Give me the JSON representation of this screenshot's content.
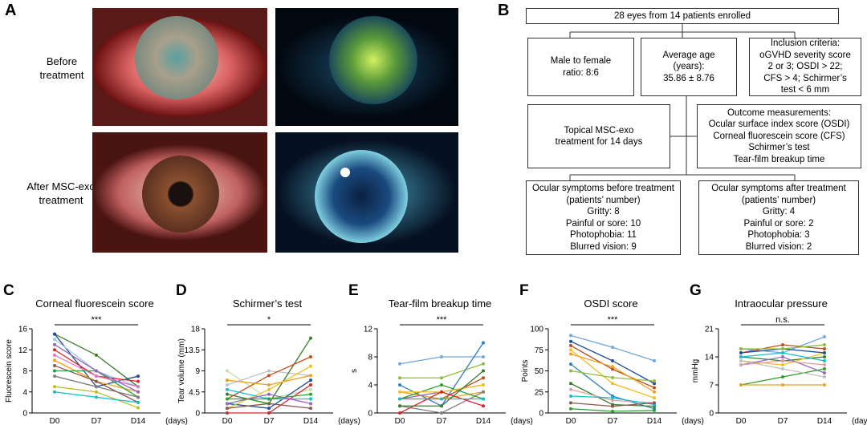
{
  "panel_labels": [
    "A",
    "B"
  ],
  "photos": {
    "before": [
      "Before",
      "treatment"
    ],
    "after": [
      "After MSC-exo",
      "treatment"
    ]
  },
  "flowchart": {
    "enrolled": [
      "28 eyes from 14 patients enrolled"
    ],
    "ratio": [
      "Male to female",
      "ratio: 8:6"
    ],
    "age": [
      "Average age",
      "(years):",
      "35.86 ± 8.76"
    ],
    "inclusion": [
      "Inclusion criteria:",
      "oGVHD  severity score",
      "2 or 3; OSDI > 22;",
      "CFS > 4; Schirmer’s",
      "test < 6 mm"
    ],
    "treatment": [
      "Topical MSC-exo",
      "treatment for 14 days"
    ],
    "outcomes": [
      "Outcome measurements:",
      "Ocular surface index score (OSDI)",
      "Corneal fluorescein score (CFS)",
      "Schirmer’s test",
      "Tear-film breakup time"
    ],
    "before": [
      "Ocular symptoms before treatment",
      "(patients’ number)",
      "Gritty: 8",
      "Painful or sore: 10",
      "Photophobia: 11",
      "Blurred vision: 9"
    ],
    "after": [
      "Ocular symptoms after treatment",
      "(patients’ number)",
      "Gritty: 4",
      "Painful or sore: 2",
      "Photophobia: 3",
      "Blurred vision: 2"
    ]
  },
  "chart_data": [
    {
      "type": "line",
      "panel": "C",
      "title": "Corneal  fluorescein score",
      "y_label": "Fluorescein score",
      "x_unit": "(days)",
      "significance": "***",
      "categories": [
        "D0",
        "D7",
        "D14"
      ],
      "ylim": [
        0,
        16
      ],
      "yticks": [
        0,
        4,
        8,
        12,
        16
      ],
      "series": [
        {
          "color": "#3a7d2c",
          "values": [
            15,
            11,
            5
          ]
        },
        {
          "color": "#1f4e9c",
          "values": [
            15,
            5,
            7
          ]
        },
        {
          "color": "#9ec9e8",
          "values": [
            14,
            8,
            5
          ]
        },
        {
          "color": "#d62728",
          "values": [
            12,
            7,
            6
          ]
        },
        {
          "color": "#f0a020",
          "values": [
            10,
            6,
            4
          ]
        },
        {
          "color": "#8c564b",
          "values": [
            9,
            6,
            2
          ]
        },
        {
          "color": "#2ca02c",
          "values": [
            8,
            8,
            3
          ]
        },
        {
          "color": "#7f7f7f",
          "values": [
            7,
            5,
            3
          ]
        },
        {
          "color": "#bcbd22",
          "values": [
            5,
            4,
            1
          ]
        },
        {
          "color": "#17becf",
          "values": [
            4,
            3,
            2
          ]
        },
        {
          "color": "#e377c2",
          "values": [
            11,
            7,
            5
          ]
        },
        {
          "color": "#9467bd",
          "values": [
            13,
            8,
            4
          ]
        }
      ]
    },
    {
      "type": "line",
      "panel": "D",
      "title": "Schirmer’s test",
      "y_label": "Tear volume (mm)",
      "x_unit": "(days)",
      "significance": "*",
      "categories": [
        "D0",
        "D7",
        "D14"
      ],
      "ylim": [
        0,
        18
      ],
      "yticks": [
        0,
        4.5,
        9,
        13.5,
        18
      ],
      "series": [
        {
          "color": "#c5e0a5",
          "values": [
            9,
            3,
            5
          ]
        },
        {
          "color": "#c0c0c0",
          "values": [
            6,
            9,
            8
          ]
        },
        {
          "color": "#3a7d2c",
          "values": [
            4,
            2,
            16
          ]
        },
        {
          "color": "#c0501a",
          "values": [
            3,
            8,
            12
          ]
        },
        {
          "color": "#1f4e9c",
          "values": [
            2,
            1,
            7
          ]
        },
        {
          "color": "#f0c020",
          "values": [
            1,
            5,
            10
          ]
        },
        {
          "color": "#17becf",
          "values": [
            5,
            3,
            3
          ]
        },
        {
          "color": "#d62728",
          "values": [
            0,
            0,
            6
          ]
        },
        {
          "color": "#9467bd",
          "values": [
            2,
            4,
            2
          ]
        },
        {
          "color": "#f0a020",
          "values": [
            7,
            6,
            8
          ]
        },
        {
          "color": "#2ca02c",
          "values": [
            3,
            3,
            4
          ]
        },
        {
          "color": "#8c564b",
          "values": [
            1,
            2,
            1
          ]
        }
      ]
    },
    {
      "type": "line",
      "panel": "E",
      "title": "Tear-film breakup time",
      "y_label": "s",
      "x_unit": "(days)",
      "significance": "***",
      "categories": [
        "D0",
        "D7",
        "D14"
      ],
      "ylim": [
        0,
        12
      ],
      "yticks": [
        0,
        4,
        8,
        12
      ],
      "series": [
        {
          "color": "#6fa8dc",
          "values": [
            7,
            8,
            8
          ]
        },
        {
          "color": "#8fbc3f",
          "values": [
            5,
            5,
            7
          ]
        },
        {
          "color": "#2f7fc1",
          "values": [
            4,
            1,
            10
          ]
        },
        {
          "color": "#f0a020",
          "values": [
            3,
            2,
            3
          ]
        },
        {
          "color": "#9467bd",
          "values": [
            2,
            3,
            4
          ]
        },
        {
          "color": "#c0501a",
          "values": [
            2,
            2,
            5
          ]
        },
        {
          "color": "#7f7f7f",
          "values": [
            1,
            0,
            3
          ]
        },
        {
          "color": "#2ca02c",
          "values": [
            2,
            4,
            2
          ]
        },
        {
          "color": "#f0c020",
          "values": [
            3,
            3,
            4
          ]
        },
        {
          "color": "#d62728",
          "values": [
            0,
            3,
            1
          ]
        },
        {
          "color": "#17becf",
          "values": [
            2,
            2,
            2
          ]
        },
        {
          "color": "#3a7d2c",
          "values": [
            1,
            1,
            6
          ]
        }
      ]
    },
    {
      "type": "line",
      "panel": "F",
      "title": "OSDI score",
      "y_label": "Points",
      "x_unit": "(days)",
      "significance": "***",
      "categories": [
        "D0",
        "D7",
        "D14"
      ],
      "ylim": [
        0,
        100
      ],
      "yticks": [
        0,
        25,
        50,
        75,
        100
      ],
      "series": [
        {
          "color": "#6fa8dc",
          "values": [
            92,
            78,
            62
          ]
        },
        {
          "color": "#1f4e9c",
          "values": [
            85,
            62,
            35
          ]
        },
        {
          "color": "#c0501a",
          "values": [
            80,
            52,
            30
          ]
        },
        {
          "color": "#f0c020",
          "values": [
            75,
            35,
            18
          ]
        },
        {
          "color": "#2f7fc1",
          "values": [
            58,
            20,
            5
          ]
        },
        {
          "color": "#8fbc3f",
          "values": [
            50,
            42,
            38
          ]
        },
        {
          "color": "#3a7d2c",
          "values": [
            35,
            10,
            8
          ]
        },
        {
          "color": "#e0a0a0",
          "values": [
            28,
            15,
            12
          ]
        },
        {
          "color": "#17becf",
          "values": [
            20,
            18,
            10
          ]
        },
        {
          "color": "#8c564b",
          "values": [
            12,
            8,
            12
          ]
        },
        {
          "color": "#f0a020",
          "values": [
            70,
            55,
            25
          ]
        },
        {
          "color": "#2ca02c",
          "values": [
            5,
            2,
            3
          ]
        }
      ]
    },
    {
      "type": "line",
      "panel": "G",
      "title": "Intraocular pressure",
      "y_label": "mmHg",
      "x_unit": "(days)",
      "significance": "n.s.",
      "categories": [
        "D0",
        "D7",
        "D14"
      ],
      "ylim": [
        0,
        21
      ],
      "yticks": [
        0,
        7,
        14,
        21
      ],
      "series": [
        {
          "color": "#6fa8dc",
          "values": [
            16,
            15,
            19
          ]
        },
        {
          "color": "#c0501a",
          "values": [
            15,
            17,
            16
          ]
        },
        {
          "color": "#3a7d2c",
          "values": [
            14,
            13,
            14
          ]
        },
        {
          "color": "#f0c020",
          "values": [
            13,
            12,
            15
          ]
        },
        {
          "color": "#9467bd",
          "values": [
            12,
            14,
            10
          ]
        },
        {
          "color": "#2ca02c",
          "values": [
            7,
            9,
            11
          ]
        },
        {
          "color": "#f0a020",
          "values": [
            7,
            7,
            7
          ]
        },
        {
          "color": "#1f4e9c",
          "values": [
            15,
            16,
            15
          ]
        },
        {
          "color": "#c0c0c0",
          "values": [
            13,
            11,
            9
          ]
        },
        {
          "color": "#17becf",
          "values": [
            14,
            15,
            13
          ]
        },
        {
          "color": "#8fbc3f",
          "values": [
            16,
            16,
            17
          ]
        },
        {
          "color": "#e0a0a0",
          "values": [
            12,
            13,
            12
          ]
        }
      ]
    }
  ]
}
